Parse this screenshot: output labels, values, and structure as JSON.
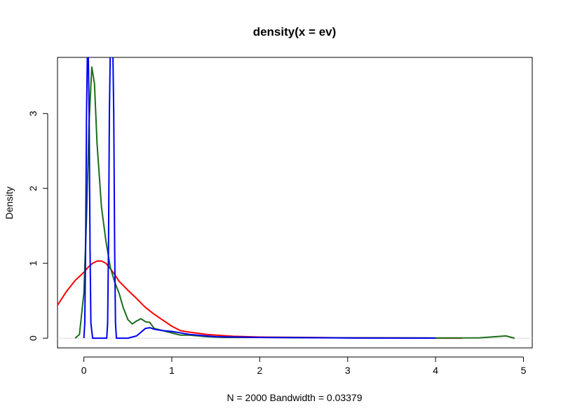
{
  "chart_data": {
    "type": "line",
    "title": "density(x = ev)",
    "xlabel": "N = 2000   Bandwidth = 0.03379",
    "ylabel": "Density",
    "xlim": [
      -0.3,
      5.1
    ],
    "ylim": [
      -0.13,
      3.75
    ],
    "x_ticks": [
      0,
      1,
      2,
      3,
      4,
      5
    ],
    "y_ticks": [
      0,
      1,
      2,
      3
    ],
    "baseline_y": 0,
    "grid": false,
    "legend": "none",
    "series": [
      {
        "color": "#ff0000",
        "x": [
          -0.3,
          -0.2,
          -0.1,
          0.0,
          0.05,
          0.1,
          0.15,
          0.2,
          0.25,
          0.3,
          0.35,
          0.4,
          0.5,
          0.6,
          0.7,
          0.8,
          0.9,
          1.0,
          1.1,
          1.2,
          1.3,
          1.4,
          1.5,
          1.7,
          2.0,
          2.5,
          3.0,
          3.5,
          4.0,
          4.3
        ],
        "y": [
          0.44,
          0.62,
          0.77,
          0.88,
          0.95,
          1.0,
          1.03,
          1.03,
          1.0,
          0.93,
          0.85,
          0.76,
          0.64,
          0.53,
          0.41,
          0.32,
          0.24,
          0.16,
          0.1,
          0.08,
          0.065,
          0.05,
          0.04,
          0.025,
          0.015,
          0.01,
          0.005,
          0.003,
          0.001,
          0.0
        ]
      },
      {
        "color": "#1a6e1a",
        "x": [
          -0.1,
          -0.05,
          0.0,
          0.03,
          0.06,
          0.09,
          0.12,
          0.15,
          0.2,
          0.25,
          0.3,
          0.35,
          0.4,
          0.45,
          0.5,
          0.55,
          0.6,
          0.65,
          0.7,
          0.75,
          0.8,
          0.9,
          1.0,
          1.1,
          1.2,
          1.4,
          1.6,
          2.0,
          3.0,
          4.0,
          4.5,
          4.8,
          4.9
        ],
        "y": [
          0.0,
          0.05,
          0.6,
          1.6,
          2.9,
          3.62,
          3.4,
          2.6,
          1.75,
          1.3,
          0.95,
          0.75,
          0.6,
          0.4,
          0.25,
          0.19,
          0.23,
          0.26,
          0.22,
          0.21,
          0.13,
          0.1,
          0.07,
          0.04,
          0.04,
          0.02,
          0.01,
          0.01,
          0.005,
          0.003,
          0.005,
          0.03,
          0.0
        ]
      },
      {
        "color": "#0000ee",
        "x": [
          0.0,
          0.01,
          0.02,
          0.03,
          0.04,
          0.05,
          0.06,
          0.07,
          0.08,
          0.1,
          0.2,
          0.26,
          0.27,
          0.28,
          0.29,
          0.3,
          0.31,
          0.32,
          0.33,
          0.34,
          0.35,
          0.36,
          0.37,
          0.5,
          0.6,
          0.65,
          0.7,
          0.75,
          0.8,
          0.9,
          1.0,
          1.2,
          1.5,
          2.0,
          3.0,
          4.0
        ],
        "y": [
          0.0,
          0.2,
          1.2,
          3.0,
          3.8,
          3.8,
          3.0,
          1.2,
          0.2,
          0.0,
          0.0,
          0.0,
          0.2,
          1.2,
          3.0,
          3.8,
          3.8,
          3.8,
          3.8,
          3.0,
          1.2,
          0.2,
          0.0,
          0.0,
          0.03,
          0.08,
          0.13,
          0.14,
          0.12,
          0.1,
          0.09,
          0.05,
          0.02,
          0.01,
          0.003,
          0.001
        ]
      }
    ]
  }
}
